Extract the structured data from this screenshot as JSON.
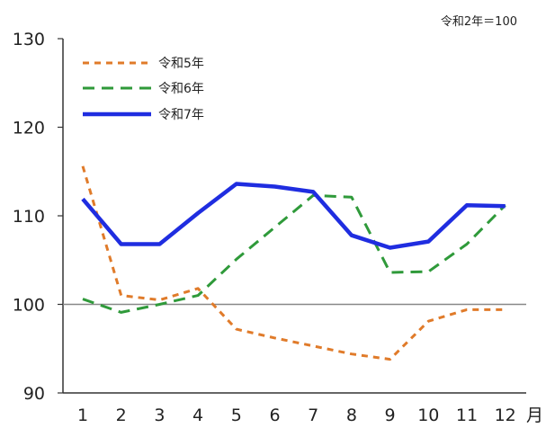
{
  "chart_data": {
    "type": "line",
    "unit_note": "令和2年＝100",
    "x_unit": "月",
    "categories": [
      "1",
      "2",
      "3",
      "4",
      "5",
      "6",
      "7",
      "8",
      "9",
      "10",
      "11",
      "12"
    ],
    "ylim": [
      90,
      130
    ],
    "yticks": [
      90,
      100,
      110,
      120,
      130
    ],
    "reference_line": 100,
    "legend_position": "top-left",
    "series": [
      {
        "name": "令和5年",
        "color": "#e07b2a",
        "style": "short-dash",
        "values": [
          115.6,
          101.0,
          100.5,
          101.8,
          97.2,
          96.2,
          95.3,
          94.4,
          93.8,
          98.1,
          99.4,
          99.4
        ]
      },
      {
        "name": "令和6年",
        "color": "#2f9a3a",
        "style": "long-dash",
        "values": [
          100.6,
          99.1,
          100.0,
          101.0,
          105.1,
          108.7,
          112.3,
          112.1,
          103.6,
          103.7,
          106.8,
          111.2
        ]
      },
      {
        "name": "令和7年",
        "color": "#1f2de0",
        "style": "solid",
        "values": [
          111.9,
          106.8,
          106.8,
          110.3,
          113.6,
          113.3,
          112.7,
          107.8,
          106.4,
          107.1,
          111.2,
          111.1
        ]
      }
    ]
  }
}
